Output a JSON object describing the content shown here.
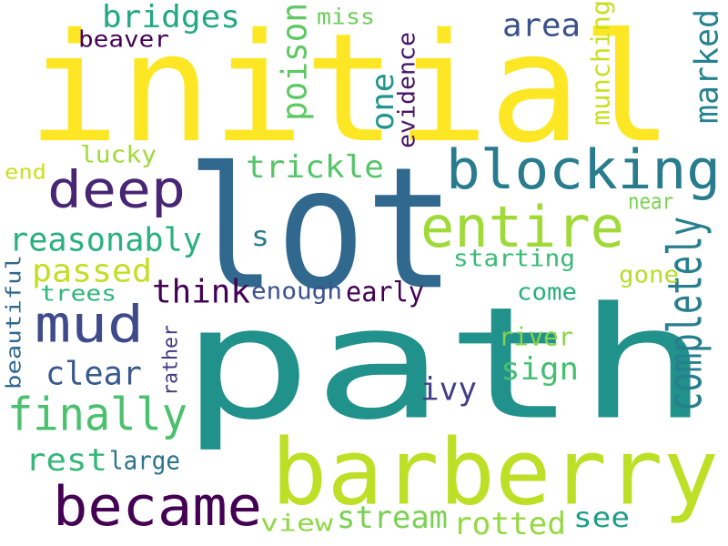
{
  "words": [
    {
      "text": "path",
      "color": "#21918c"
    },
    {
      "text": "lot",
      "color": "#31688e"
    },
    {
      "text": "initial",
      "color": "#fde725"
    },
    {
      "text": "barberry",
      "color": "#bddf26"
    },
    {
      "text": "became",
      "color": "#440154"
    },
    {
      "text": "blocking",
      "color": "#287c8e"
    },
    {
      "text": "entire",
      "color": "#a0da39"
    },
    {
      "text": "deep",
      "color": "#482575"
    },
    {
      "text": "mud",
      "color": "#3e4a89"
    },
    {
      "text": "finally",
      "color": "#4ac16d"
    },
    {
      "text": "stream",
      "color": "#7ad151"
    },
    {
      "text": "rotted",
      "color": "#95d840"
    },
    {
      "text": "completely",
      "color": "#277f8e"
    },
    {
      "text": "reasonably",
      "color": "#2ab07f"
    },
    {
      "text": "trickle",
      "color": "#54c568"
    },
    {
      "text": "passed",
      "color": "#c2df23"
    },
    {
      "text": "marked",
      "color": "#26828e"
    },
    {
      "text": "poison",
      "color": "#5ec962"
    },
    {
      "text": "think",
      "color": "#440154"
    },
    {
      "text": "bridges",
      "color": "#22a884"
    },
    {
      "text": "area",
      "color": "#3b528b"
    },
    {
      "text": "clear",
      "color": "#38598c"
    },
    {
      "text": "sign",
      "color": "#44bf70"
    },
    {
      "text": "rest",
      "color": "#35b779"
    },
    {
      "text": "ivy",
      "color": "#433e85"
    },
    {
      "text": "one",
      "color": "#1f958b"
    },
    {
      "text": "evidence",
      "color": "#481467"
    },
    {
      "text": "munching",
      "color": "#c8e020"
    },
    {
      "text": "beaver",
      "color": "#440154"
    },
    {
      "text": "miss",
      "color": "#6ccd5a"
    },
    {
      "text": "lucky",
      "color": "#a0da39"
    },
    {
      "text": "end",
      "color": "#c8e020"
    },
    {
      "text": "s",
      "color": "#2a788e"
    },
    {
      "text": "near",
      "color": "#7ad151"
    },
    {
      "text": "starting",
      "color": "#3bbb75"
    },
    {
      "text": "trees",
      "color": "#2fb47c"
    },
    {
      "text": "enough",
      "color": "#3b528b"
    },
    {
      "text": "early",
      "color": "#440154"
    },
    {
      "text": "gone",
      "color": "#b5de2b"
    },
    {
      "text": "come",
      "color": "#2ab07f"
    },
    {
      "text": "beautiful",
      "color": "#31688e"
    },
    {
      "text": "river",
      "color": "#86d549"
    },
    {
      "text": "rather",
      "color": "#443983"
    },
    {
      "text": "large",
      "color": "#2c728e"
    },
    {
      "text": "see",
      "color": "#1e9c89"
    },
    {
      "text": "view",
      "color": "#8fd744"
    }
  ]
}
